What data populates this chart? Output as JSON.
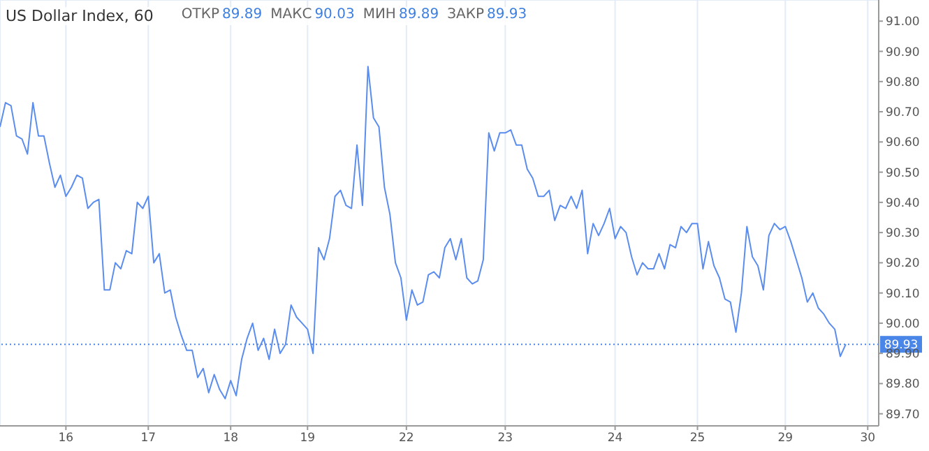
{
  "chart_data": {
    "type": "line",
    "title": "US Dollar Index, 60",
    "annotations": [
      "ОТКР",
      "89.89",
      "МАКС",
      "90.03",
      "МИН",
      "89.89",
      "ЗАКР",
      "89.93"
    ],
    "categories": [
      null,
      null,
      null,
      null,
      null,
      null,
      null,
      null,
      null,
      null,
      null,
      null,
      "16",
      null,
      null,
      null,
      null,
      null,
      null,
      null,
      null,
      null,
      null,
      null,
      null,
      null,
      null,
      "17",
      null,
      null,
      null,
      null,
      null,
      null,
      null,
      null,
      null,
      null,
      null,
      null,
      null,
      null,
      "18",
      null,
      null,
      null,
      null,
      null,
      null,
      null,
      null,
      null,
      null,
      null,
      null,
      null,
      "19",
      null,
      null,
      null,
      null,
      null,
      null,
      null,
      null,
      null,
      null,
      null,
      null,
      null,
      null,
      null,
      null,
      null,
      "22",
      null,
      null,
      null,
      null,
      null,
      null,
      null,
      null,
      null,
      null,
      null,
      null,
      null,
      null,
      null,
      null,
      null,
      "23",
      null,
      null,
      null,
      null,
      null,
      null,
      null,
      null,
      null,
      null,
      null,
      null,
      null,
      null,
      null,
      null,
      null,
      null,
      null,
      "24",
      null,
      null,
      null,
      null,
      null,
      null,
      null,
      null,
      null,
      null,
      null,
      null,
      null,
      null,
      "25",
      null,
      null,
      null,
      null,
      null,
      null,
      null,
      null,
      null,
      null,
      null,
      null,
      null,
      null,
      null,
      "29",
      null,
      null,
      null,
      null,
      null,
      null,
      null,
      null,
      null,
      null,
      null,
      null,
      null,
      null,
      "30",
      null,
      null
    ],
    "series": [
      {
        "color": "#5b8def",
        "values": [
          90.65,
          90.73,
          90.72,
          90.62,
          90.61,
          90.56,
          90.73,
          90.62,
          90.62,
          90.53,
          90.45,
          90.49,
          90.42,
          90.45,
          90.49,
          90.48,
          90.38,
          90.4,
          90.41,
          90.11,
          90.11,
          90.2,
          90.18,
          90.24,
          90.23,
          90.4,
          90.38,
          90.42,
          90.2,
          90.23,
          90.1,
          90.11,
          90.02,
          89.96,
          89.91,
          89.91,
          89.82,
          89.85,
          89.77,
          89.83,
          89.78,
          89.75,
          89.81,
          89.76,
          89.88,
          89.95,
          90.0,
          89.91,
          89.95,
          89.88,
          89.98,
          89.9,
          89.93,
          90.06,
          90.02,
          90.0,
          89.98,
          89.9,
          90.25,
          90.21,
          90.28,
          90.42,
          90.44,
          90.39,
          90.38,
          90.59,
          90.39,
          90.85,
          90.68,
          90.65,
          90.45,
          90.36,
          90.2,
          90.15,
          90.01,
          90.11,
          90.06,
          90.07,
          90.16,
          90.17,
          90.15,
          90.25,
          90.28,
          90.21,
          90.28,
          90.15,
          90.13,
          90.14,
          90.21,
          90.63,
          90.57,
          90.63,
          90.63,
          90.64,
          90.59,
          90.59,
          90.51,
          90.48,
          90.42,
          90.42,
          90.44,
          90.34,
          90.39,
          90.38,
          90.42,
          90.38,
          90.44,
          90.23,
          90.33,
          90.29,
          90.33,
          90.38,
          90.28,
          90.32,
          90.3,
          90.22,
          90.16,
          90.2,
          90.18,
          90.18,
          90.23,
          90.18,
          90.26,
          90.25,
          90.32,
          90.3,
          90.33,
          90.33,
          90.18,
          90.27,
          90.19,
          90.15,
          90.08,
          90.07,
          89.97,
          90.1,
          90.32,
          90.22,
          90.19,
          90.11,
          90.29,
          90.33,
          90.31,
          90.32,
          90.27,
          90.21,
          90.15,
          90.07,
          90.1,
          90.05,
          90.03,
          90.0,
          89.98,
          89.89,
          89.93,
          null,
          null,
          null,
          null,
          null,
          null
        ]
      }
    ],
    "ylim": [
      89.66,
      91.07
    ],
    "yticks": [
      {
        "value": 89.7,
        "label": "89.70"
      },
      {
        "value": 89.8,
        "label": "89.80"
      },
      {
        "value": 89.9,
        "label": "89.90"
      },
      {
        "value": 90,
        "label": "90.00"
      },
      {
        "value": 90.1,
        "label": "90.10"
      },
      {
        "value": 90.2,
        "label": "90.20"
      },
      {
        "value": 90.3,
        "label": "90.30"
      },
      {
        "value": 90.4,
        "label": "90.40"
      },
      {
        "value": 90.5,
        "label": "90.50"
      },
      {
        "value": 90.6,
        "label": "90.60"
      },
      {
        "value": 90.7,
        "label": "90.70"
      },
      {
        "value": 90.8,
        "label": "90.80"
      },
      {
        "value": 90.9,
        "label": "90.90"
      },
      {
        "value": 91,
        "label": "91.00"
      }
    ],
    "ref_lines": [
      {
        "axis": "y",
        "value": 89.93,
        "label": "89.93",
        "color": "#4a86e8",
        "line_style": "dotted"
      }
    ],
    "grid": true,
    "marker": "none",
    "line_style": "solid"
  }
}
